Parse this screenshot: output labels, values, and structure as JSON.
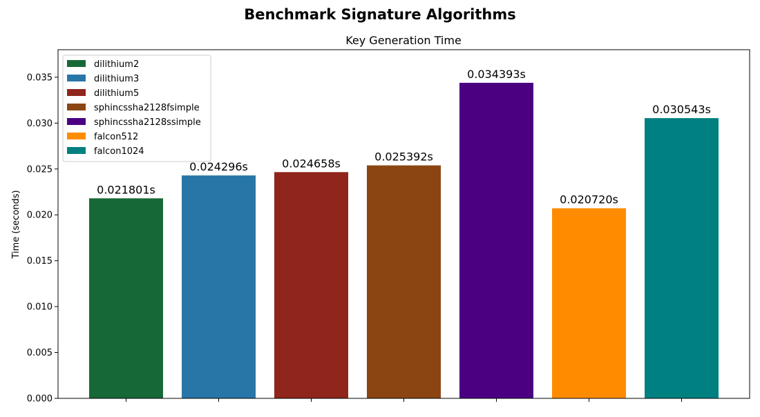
{
  "figure": {
    "suptitle": "Benchmark Signature Algorithms"
  },
  "chart_data": {
    "type": "bar",
    "title": "Key Generation Time",
    "xlabel": "",
    "ylabel": "Time (seconds)",
    "ylim": [
      0,
      0.038
    ],
    "yticks": [
      "0.000",
      "0.005",
      "0.010",
      "0.015",
      "0.020",
      "0.025",
      "0.030",
      "0.035"
    ],
    "grid": false,
    "legend_position": "upper-left",
    "categories": [
      "dilithium2",
      "dilithium3",
      "dilithium5",
      "sphincssha2128fsimple",
      "sphincssha2128ssimple",
      "falcon512",
      "falcon1024"
    ],
    "values": [
      0.021801,
      0.024296,
      0.024658,
      0.025392,
      0.034393,
      0.02072,
      0.030543
    ],
    "data_labels": [
      "0.021801s",
      "0.024296s",
      "0.024658s",
      "0.025392s",
      "0.034393s",
      "0.020720s",
      "0.030543s"
    ],
    "colors": [
      "#176837",
      "#2876a8",
      "#90251b",
      "#8b4513",
      "#4b0082",
      "#ff8c00",
      "#008080"
    ]
  }
}
